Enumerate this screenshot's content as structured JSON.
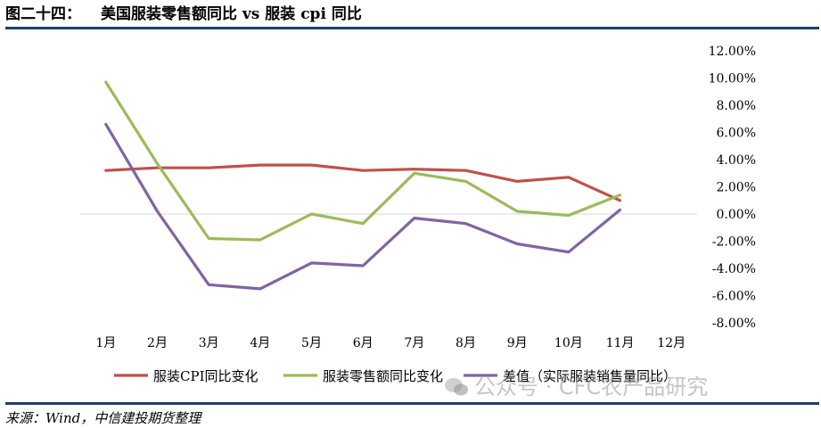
{
  "header": {
    "figure_no": "图二十四：",
    "title": "美国服装零售额同比 vs 服装 cpi 同比"
  },
  "source": "来源：Wind，中信建投期货整理",
  "watermark": "公众号 · CFC农产品研究",
  "chart_data": {
    "type": "line",
    "categories": [
      "1月",
      "2月",
      "3月",
      "4月",
      "5月",
      "6月",
      "7月",
      "8月",
      "9月",
      "10月",
      "11月",
      "12月"
    ],
    "ylim": [
      -8,
      12
    ],
    "y_ticks": [
      12,
      10,
      8,
      6,
      4,
      2,
      0,
      -2,
      -4,
      -6,
      -8
    ],
    "y_tick_labels": [
      "12.00%",
      "10.00%",
      "8.00%",
      "6.00%",
      "4.00%",
      "2.00%",
      "0.00%",
      "-2.00%",
      "-4.00%",
      "-6.00%",
      "-8.00%"
    ],
    "y_axis_position": "right",
    "grid": false,
    "legend_position": "bottom",
    "series": [
      {
        "name": "服装CPI同比变化",
        "color": "#c0504d",
        "values": [
          3.2,
          3.4,
          3.4,
          3.6,
          3.6,
          3.2,
          3.3,
          3.2,
          2.4,
          2.7,
          1.0,
          null
        ]
      },
      {
        "name": "服装零售额同比变化",
        "color": "#9bbb59",
        "values": [
          9.7,
          3.7,
          -1.8,
          -1.9,
          0.0,
          -0.7,
          3.0,
          2.4,
          0.2,
          -0.1,
          1.4,
          null
        ]
      },
      {
        "name": "差值（实际服装销售量同比）",
        "color": "#8064a2",
        "values": [
          6.6,
          0.2,
          -5.2,
          -5.5,
          -3.6,
          -3.8,
          -0.3,
          -0.7,
          -2.2,
          -2.8,
          0.3,
          null
        ]
      }
    ]
  }
}
